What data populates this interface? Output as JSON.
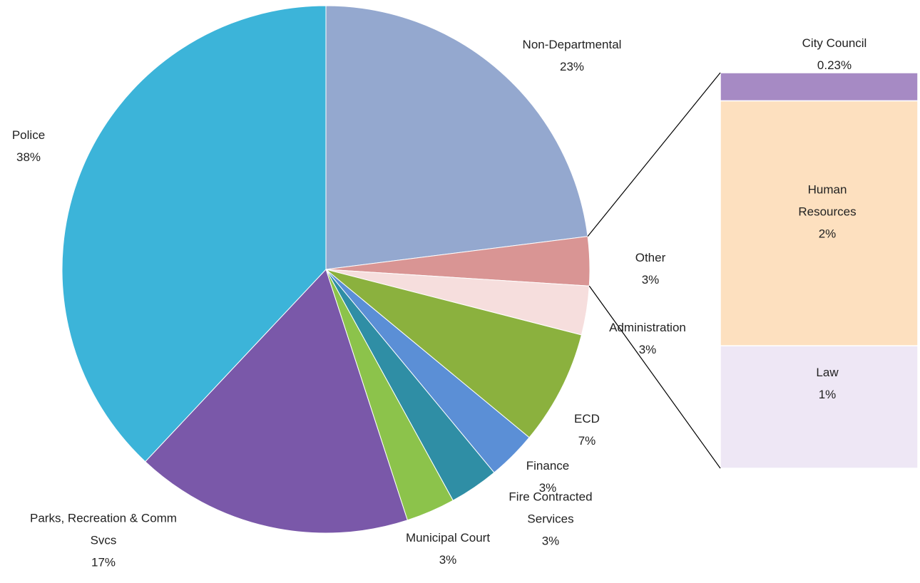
{
  "chart_data": [
    {
      "type": "pie",
      "categories": [
        "Non-Departmental",
        "Other",
        "Administration",
        "ECD",
        "Finance",
        "Fire Contracted Services",
        "Municipal Court",
        "Parks, Recreation & Comm Svcs",
        "Police"
      ],
      "values": [
        23,
        3,
        3,
        7,
        3,
        3,
        3,
        17,
        38
      ],
      "value_labels": [
        "23%",
        "3%",
        "3%",
        "7%",
        "3%",
        "3%",
        "3%",
        "17%",
        "38%"
      ],
      "colors": [
        "#94a8cf",
        "#d99594",
        "#f6dedd",
        "#8bb13e",
        "#5b8fd6",
        "#2f8ea5",
        "#8cc34b",
        "#7a58a9",
        "#3cb4d9"
      ]
    },
    {
      "type": "bar",
      "categories": [
        "City Council",
        "Human Resources",
        "Law"
      ],
      "values": [
        0.23,
        2,
        1
      ],
      "value_labels": [
        "0.23%",
        "2%",
        "1%"
      ],
      "colors": [
        "#a68ac4",
        "#fde0bf",
        "#eee7f5"
      ]
    }
  ]
}
